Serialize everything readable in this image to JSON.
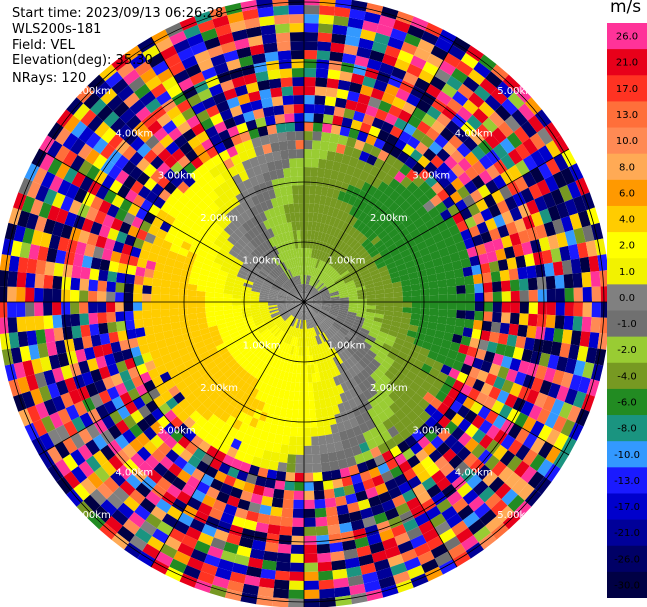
{
  "header": {
    "start_time": "Start time: 2023/09/13 06:26:28",
    "instrument": "WLS200s-181",
    "field": "Field: VEL",
    "elevation": "Elevation(deg): 35.30",
    "nrays": "NRays: 120"
  },
  "colorbar": {
    "unit": "m/s",
    "levels": [
      {
        "label": "26.0",
        "color": "#ff3399"
      },
      {
        "label": "21.0",
        "color": "#e8001a"
      },
      {
        "label": "17.0",
        "color": "#ff3322"
      },
      {
        "label": "13.0",
        "color": "#ff6f3a"
      },
      {
        "label": "10.0",
        "color": "#ff8a54"
      },
      {
        "label": "8.0",
        "color": "#ffaa55"
      },
      {
        "label": "6.0",
        "color": "#ff9900"
      },
      {
        "label": "4.0",
        "color": "#ffcc00"
      },
      {
        "label": "2.0",
        "color": "#ffff00"
      },
      {
        "label": "1.0",
        "color": "#f2f200"
      },
      {
        "label": "0.0",
        "color": "#808080"
      },
      {
        "label": "-1.0",
        "color": "#707070"
      },
      {
        "label": "-2.0",
        "color": "#99cc33"
      },
      {
        "label": "-4.0",
        "color": "#779922"
      },
      {
        "label": "-6.0",
        "color": "#228B22"
      },
      {
        "label": "-8.0",
        "color": "#1a9480"
      },
      {
        "label": "-10.0",
        "color": "#3399ff"
      },
      {
        "label": "-13.0",
        "color": "#1a1aff"
      },
      {
        "label": "-17.0",
        "color": "#0000cc"
      },
      {
        "label": "-21.0",
        "color": "#000099"
      },
      {
        "label": "-26.0",
        "color": "#000066"
      },
      {
        "label": "-30.0",
        "color": "#000044"
      }
    ]
  },
  "chart_data": {
    "type": "heatmap",
    "description_field": "VEL",
    "rings_km": [
      1.0,
      2.0,
      3.0,
      4.0,
      5.0
    ],
    "ring_labels": [
      "1.00km",
      "2.00km",
      "3.00km",
      "4.00km",
      "5.00km"
    ],
    "azimuth_spokes_deg": [
      0,
      30,
      60,
      90,
      120,
      150,
      180,
      210,
      240,
      270,
      300,
      330
    ],
    "nrays": 120,
    "max_range_km": 5.1,
    "wind_profile": {
      "direction_from_deg": 15,
      "speed_by_range_km": [
        {
          "range_km": 0.0,
          "speed": 0.0
        },
        {
          "range_km": 1.0,
          "speed": 2.5
        },
        {
          "range_km": 1.5,
          "speed": 3.5
        },
        {
          "range_km": 2.0,
          "speed": 5.0
        },
        {
          "range_km": 2.5,
          "speed": 4.5
        }
      ],
      "noise_beyond_range_km": 2.9
    }
  }
}
